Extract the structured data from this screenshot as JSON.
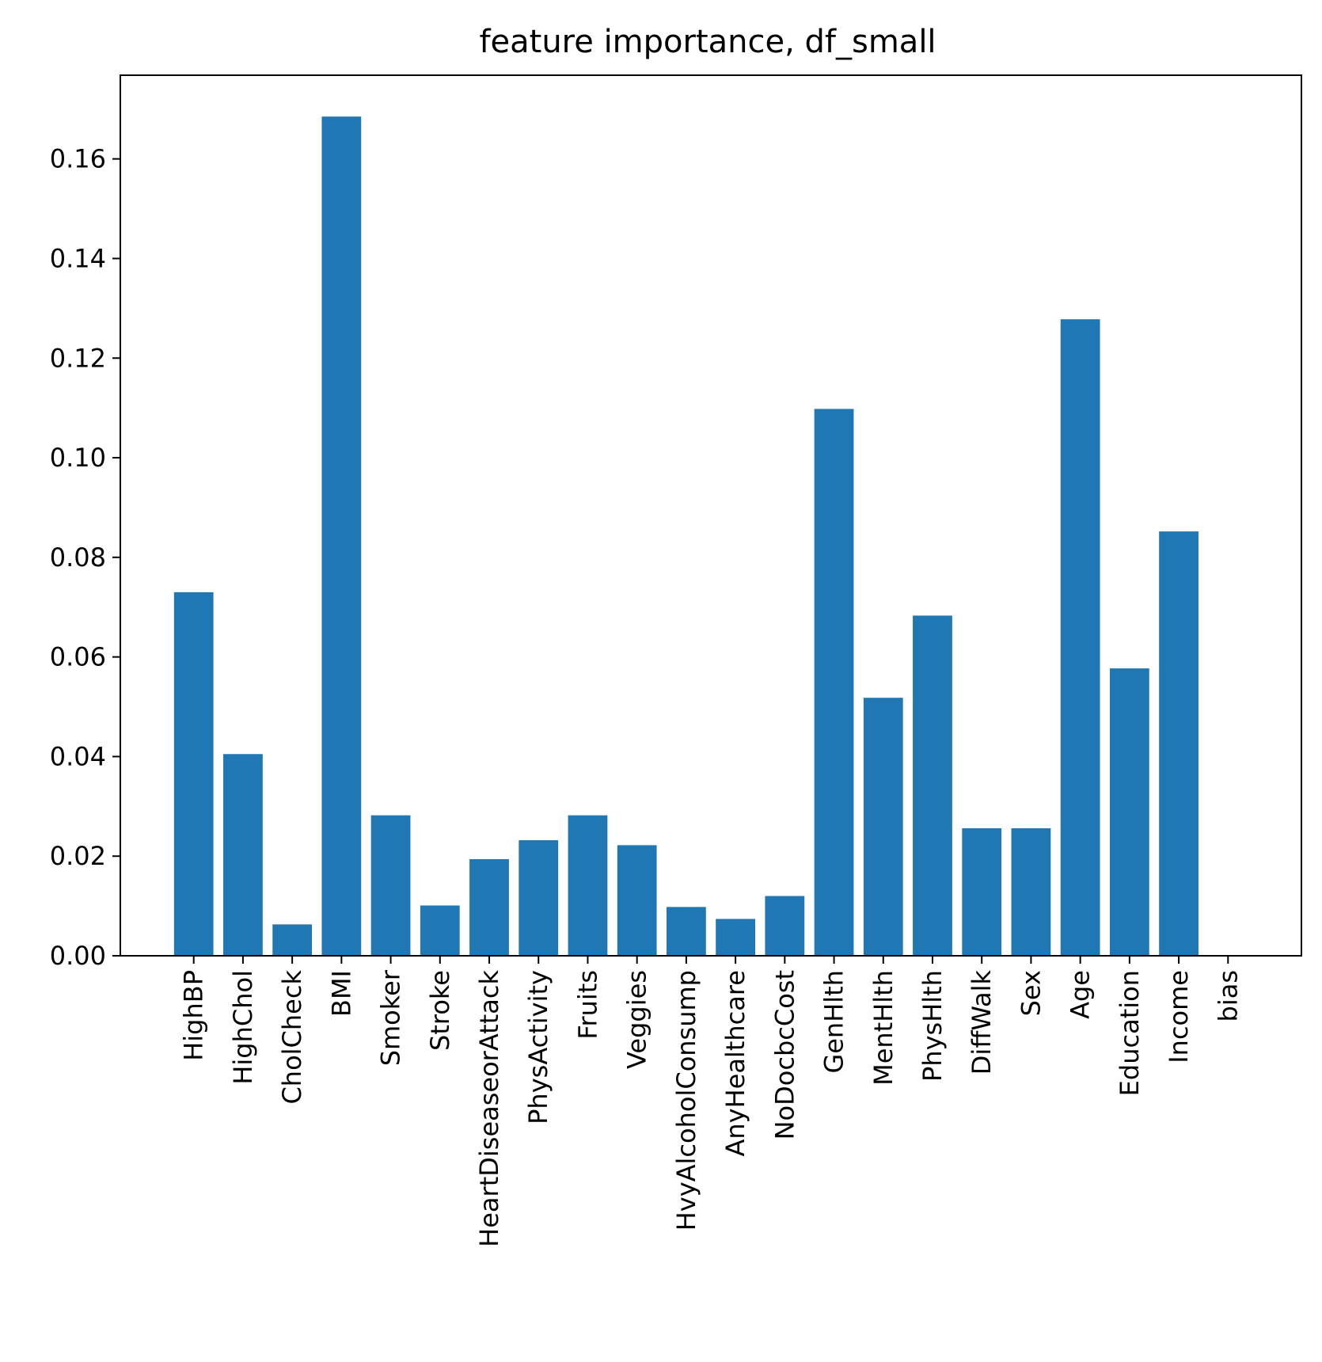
{
  "chart_data": {
    "type": "bar",
    "title": "feature importance, df_small",
    "xlabel": "",
    "ylabel": "",
    "categories": [
      "HighBP",
      "HighChol",
      "CholCheck",
      "BMI",
      "Smoker",
      "Stroke",
      "HeartDiseaseorAttack",
      "PhysActivity",
      "Fruits",
      "Veggies",
      "HvyAlcoholConsump",
      "AnyHealthcare",
      "NoDocbcCost",
      "GenHlth",
      "MentHlth",
      "PhysHlth",
      "DiffWalk",
      "Sex",
      "Age",
      "Education",
      "Income",
      "bias"
    ],
    "values": [
      0.073,
      0.0405,
      0.0063,
      0.1685,
      0.0282,
      0.0101,
      0.0194,
      0.0232,
      0.0282,
      0.0222,
      0.0098,
      0.0074,
      0.012,
      0.1098,
      0.0518,
      0.0683,
      0.0256,
      0.0256,
      0.1278,
      0.0577,
      0.0852,
      0.0
    ],
    "yticks": [
      "0.00",
      "0.02",
      "0.04",
      "0.06",
      "0.08",
      "0.10",
      "0.12",
      "0.14",
      "0.16"
    ],
    "ylim": [
      0,
      0.1768
    ],
    "grid": false,
    "legend": "none",
    "bar_color": "#1f77b4"
  }
}
